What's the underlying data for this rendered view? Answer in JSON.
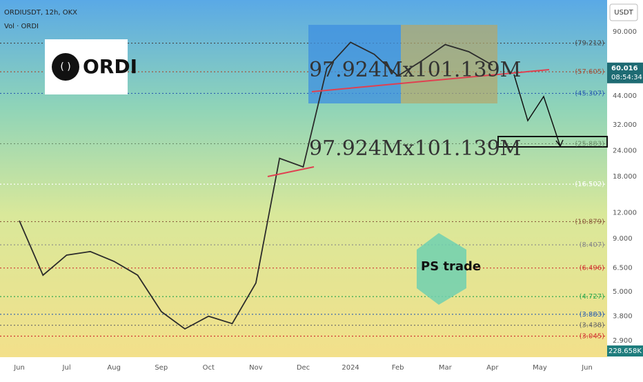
{
  "chart_data": {
    "type": "line",
    "title": "ORDIUSDT, 12h, OKX",
    "subtitle": "Vol · ORDI",
    "categories": [
      "Jun",
      null,
      "Jul",
      null,
      "Aug",
      null,
      "Sep",
      null,
      "Oct",
      null,
      "Nov",
      null,
      "Dec",
      null,
      "2024",
      null,
      "Feb",
      null,
      "Mar",
      null,
      "Apr",
      null,
      "May",
      null,
      "Jun"
    ],
    "values": [
      11,
      6,
      7.5,
      7.8,
      7,
      6,
      4,
      3.3,
      3.8,
      3.5,
      5.5,
      22,
      20,
      60,
      80,
      70,
      55,
      65,
      78,
      72,
      62,
      null,
      null,
      null,
      null
    ],
    "color": "#2b2b2b",
    "log_scale": true,
    "ylim": [
      2.41,
      128
    ],
    "yticks": [
      {
        "value": 2.9,
        "label": "2.900"
      },
      {
        "value": 3.8,
        "label": "3.800"
      },
      {
        "value": 5,
        "label": "5.000"
      },
      {
        "value": 6.5,
        "label": "6.500"
      },
      {
        "value": 9,
        "label": "9.000"
      },
      {
        "value": 12,
        "label": "12.000"
      },
      {
        "value": 18,
        "label": "18.000"
      },
      {
        "value": 24,
        "label": "24.000"
      },
      {
        "value": 32,
        "label": "32.000"
      },
      {
        "value": 44,
        "label": "44.000"
      },
      {
        "value": 90,
        "label": "90.000"
      }
    ],
    "y_unit": "USDT",
    "last_price": 60.016,
    "countdown": "08:54:34",
    "volume_label": "228.658K",
    "levels": [
      {
        "value": 79.212,
        "label": "(79.212)",
        "color": "#444444"
      },
      {
        "value": 57.605,
        "label": "(57.605)",
        "color": "#a0523c"
      },
      {
        "value": 45.307,
        "label": "(45.307)",
        "color": "#2a5db0"
      },
      {
        "value": 25.883,
        "label": "(25.883)",
        "color": "#6a8f6a"
      },
      {
        "value": 16.502,
        "label": "(16.502)",
        "color": "#ffffff"
      },
      {
        "value": 10.879,
        "label": "(10.879)",
        "color": "#8a5a3c"
      },
      {
        "value": 8.407,
        "label": "(8.407)",
        "color": "#888888"
      },
      {
        "value": 6.496,
        "label": "(6.496)",
        "color": "#d03030"
      },
      {
        "value": 4.727,
        "label": "(4.727)",
        "color": "#2fa84f"
      },
      {
        "value": 3.883,
        "label": "(3.883)",
        "color": "#2a5db0"
      },
      {
        "value": 3.438,
        "label": "(3.438)",
        "color": "#666666"
      },
      {
        "value": 3.045,
        "label": "(3.045)",
        "color": "#d03030"
      }
    ],
    "annotations": [
      "97.924Mx101.139M",
      "97.924Mx101.139M"
    ],
    "logo_text": "ORDI",
    "watermark": "PS trade"
  }
}
